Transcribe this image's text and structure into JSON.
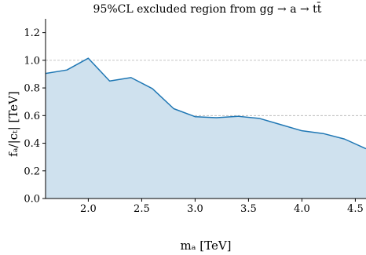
{
  "chart_data": {
    "type": "area",
    "title": "95%CL excluded region from gg → a → tt̄",
    "xlabel": "mₐ [TeV]",
    "ylabel": "fₐ/|cₜ| [TeV]",
    "xlim": [
      1.6,
      4.6
    ],
    "ylim": [
      0.0,
      1.3
    ],
    "xticks": [
      2.0,
      2.5,
      3.0,
      3.5,
      4.0,
      4.5
    ],
    "xtick_labels": [
      "2.0",
      "2.5",
      "3.0",
      "3.5",
      "4.0",
      "4.5"
    ],
    "yticks": [
      0.0,
      0.2,
      0.4,
      0.6,
      0.8,
      1.0,
      1.2
    ],
    "ytick_labels": [
      "0.0",
      "0.2",
      "0.4",
      "0.6",
      "0.8",
      "1.0",
      "1.2"
    ],
    "grid": "horizontal dashed lines at 0.2, 0.6, 1.0",
    "legend": "none",
    "series": [
      {
        "x": [
          1.6,
          1.8,
          2.0,
          2.2,
          2.4,
          2.6,
          2.8,
          3.0,
          3.2,
          3.4,
          3.6,
          3.8,
          4.0,
          4.2,
          4.4,
          4.6
        ],
        "y": [
          0.905,
          0.93,
          1.015,
          0.85,
          0.875,
          0.795,
          0.65,
          0.592,
          0.585,
          0.595,
          0.58,
          0.535,
          0.49,
          0.47,
          0.43,
          0.36
        ]
      }
    ],
    "colors": {
      "line": "#1f77b4",
      "fill": "#cfe1ee",
      "grid": "#b0b0b0",
      "axis": "#000000"
    }
  }
}
